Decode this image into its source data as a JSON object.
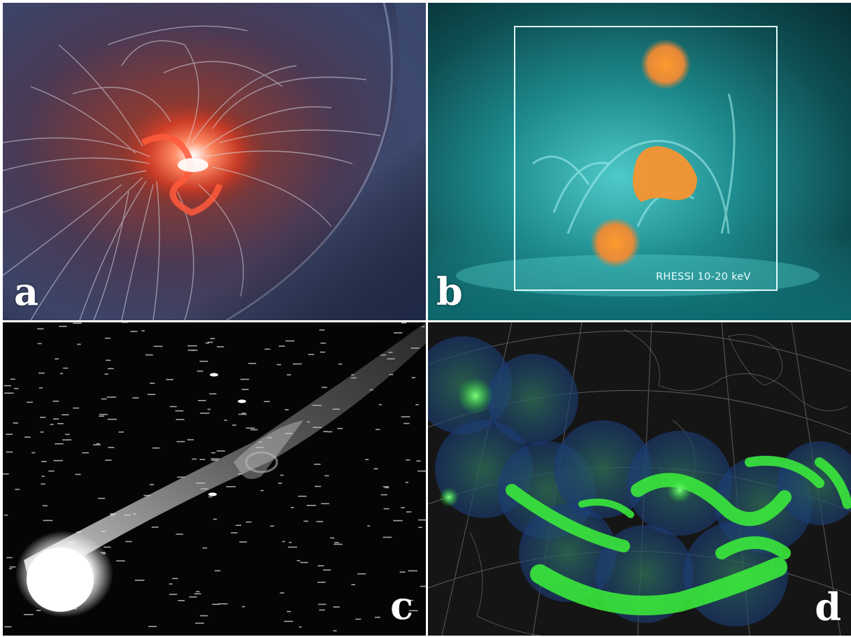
{
  "panels": {
    "a": {
      "letter": "a"
    },
    "b": {
      "letter": "b",
      "annotation": "RHESSI 10-20 keV"
    },
    "c": {
      "letter": "c"
    },
    "d": {
      "letter": "d"
    }
  }
}
